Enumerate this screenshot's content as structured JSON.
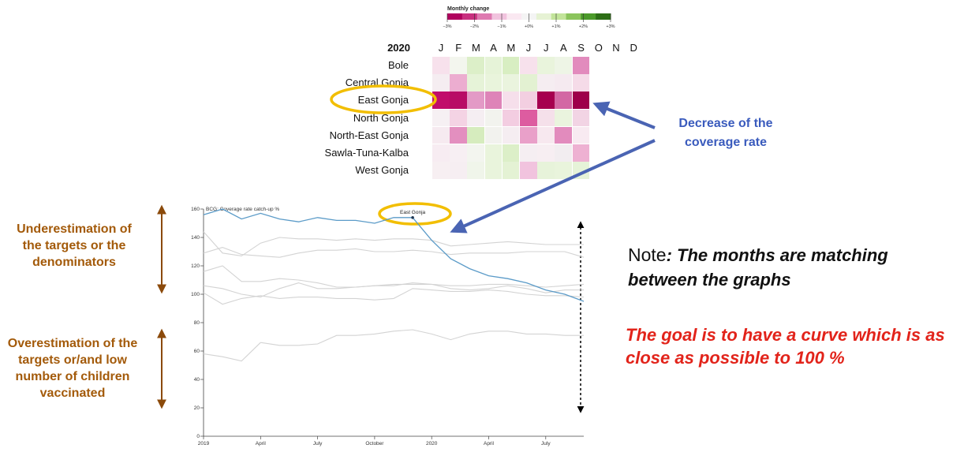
{
  "heatmap": {
    "legend_title": "Monthly change",
    "legend_ticks": [
      "−3%",
      "−2%",
      "−1%",
      "+0%",
      "+1%",
      "+2%",
      "+3%"
    ],
    "legend_colors": [
      "#b0025e",
      "#c8307f",
      "#de79b0",
      "#f1c3de",
      "#fae8f1",
      "#f4f4f4",
      "#e6f2d4",
      "#c2e49a",
      "#8bc45c",
      "#4b9a2a",
      "#2d6e16"
    ],
    "year": "2020",
    "months": [
      "J",
      "F",
      "M",
      "A",
      "M",
      "J",
      "J",
      "A",
      "S",
      "O",
      "N",
      "D"
    ],
    "rows": [
      {
        "label": "Bole",
        "colors": [
          "#f7e1ec",
          "#f3f6ee",
          "#dcefc8",
          "#e6f3d8",
          "#d8eec2",
          "#f7e1ec",
          "#e9f4dc",
          "#eef5e6",
          "#e28bbd"
        ]
      },
      {
        "label": "Central Gonja",
        "colors": [
          "#f5edf1",
          "#ecadd0",
          "#e6f3d8",
          "#e9f4dc",
          "#eaf4de",
          "#e3f1d2",
          "#f5edf1",
          "#f5eaf0",
          "#f5dbe8"
        ]
      },
      {
        "label": "East Gonja",
        "colors": [
          "#c10d6b",
          "#b80b66",
          "#e39ac6",
          "#de84b8",
          "#f6dfeb",
          "#f3cfe1",
          "#a6004f",
          "#d368a4",
          "#9e004a"
        ]
      },
      {
        "label": "North Gonja",
        "colors": [
          "#f6f0f3",
          "#f4d3e4",
          "#f5eef2",
          "#f2f3ee",
          "#f3cde1",
          "#dd5ca0",
          "#f5e0ea",
          "#eaf4de",
          "#f2d4e4"
        ]
      },
      {
        "label": "North-East Gonja",
        "colors": [
          "#f6eaf0",
          "#e38fbf",
          "#d6ecbe",
          "#f2f2ee",
          "#f5edf1",
          "#e9a0c9",
          "#f7e8ef",
          "#e28bbd",
          "#f8eaf1"
        ]
      },
      {
        "label": "Sawla-Tuna-Kalba",
        "colors": [
          "#f7ecf2",
          "#f7eff3",
          "#f3f5ef",
          "#e9f4dc",
          "#dcefc8",
          "#f5eef2",
          "#f7eef2",
          "#f2edf0",
          "#eeb1d2"
        ]
      },
      {
        "label": "West Gonja",
        "colors": [
          "#f7eff2",
          "#f6eef2",
          "#f0f5ea",
          "#e9f4dc",
          "#e4f2d4",
          "#f1c3de",
          "#e7f3da",
          "#e9f4dc",
          "#e6f3d8"
        ]
      }
    ]
  },
  "annotations": {
    "blue_label": [
      "Decrease of the",
      "coverage rate"
    ],
    "under_label": [
      "Underestimation of",
      "the targets or the",
      "denominators"
    ],
    "over_label": [
      "Overestimation of the",
      "targets or/and low",
      "number of children",
      "vaccinated"
    ],
    "note_prefix": "Note",
    "note_text": ": The months are matching between the graphs",
    "goal_text": "The goal is to have a curve which is as close as possible to 100 %"
  },
  "chart_data": {
    "type": "line",
    "title": "BCG: Coverage rate catch-up %",
    "x_tick_labels": [
      "2019",
      "April",
      "July",
      "October",
      "2020",
      "April",
      "July"
    ],
    "x_tick_months": [
      0,
      3,
      6,
      9,
      12,
      15,
      18
    ],
    "ylim": [
      0,
      160
    ],
    "y_ticks": [
      0,
      20,
      40,
      60,
      80,
      100,
      120,
      140,
      160
    ],
    "highlight_label": "East Gonja",
    "highlight_month": 11,
    "grid": false,
    "series": [
      {
        "highlight": true,
        "color": "#5b9bc8",
        "x": [
          0,
          1,
          2,
          3,
          4,
          5,
          6,
          7,
          8,
          9,
          10,
          11,
          12,
          13,
          14,
          15,
          16,
          17,
          18,
          19,
          20
        ],
        "y": [
          156,
          160,
          153,
          157,
          153,
          151,
          154,
          152,
          152,
          150,
          154,
          154,
          138,
          125,
          118,
          113,
          111,
          108,
          103,
          100,
          95
        ]
      },
      {
        "color": "#d3d3d3",
        "x": [
          0,
          1,
          2,
          3,
          4,
          5,
          6,
          7,
          8,
          9,
          10,
          11,
          12,
          13,
          14,
          15,
          16,
          17,
          18,
          19,
          20
        ],
        "y": [
          144,
          129,
          127,
          136,
          140,
          139,
          139,
          138,
          139,
          138,
          139,
          139,
          138,
          134,
          135,
          136,
          137,
          136,
          135,
          135,
          135
        ]
      },
      {
        "color": "#d3d3d3",
        "x": [
          0,
          1,
          2,
          3,
          4,
          5,
          6,
          7,
          8,
          9,
          10,
          11,
          12,
          13,
          14,
          15,
          16,
          17,
          18,
          19,
          20
        ],
        "y": [
          129,
          133,
          128,
          127,
          126,
          129,
          131,
          131,
          132,
          130,
          130,
          131,
          130,
          128,
          129,
          129,
          129,
          130,
          130,
          130,
          126
        ]
      },
      {
        "color": "#d3d3d3",
        "x": [
          0,
          1,
          2,
          3,
          4,
          5,
          6,
          7,
          8,
          9,
          10,
          11,
          12,
          13,
          14,
          15,
          16,
          17,
          18,
          19,
          20
        ],
        "y": [
          116,
          120,
          109,
          109,
          111,
          110,
          108,
          105,
          105,
          106,
          106,
          108,
          107,
          106,
          106,
          107,
          107,
          106,
          105,
          106,
          107
        ]
      },
      {
        "color": "#d3d3d3",
        "x": [
          0,
          1,
          2,
          3,
          4,
          5,
          6,
          7,
          8,
          9,
          10,
          11,
          12,
          13,
          14,
          15,
          16,
          17,
          18,
          19,
          20
        ],
        "y": [
          106,
          104,
          100,
          98,
          104,
          108,
          104,
          104,
          105,
          106,
          107,
          107,
          107,
          104,
          103,
          104,
          106,
          104,
          101,
          103,
          103
        ]
      },
      {
        "color": "#d3d3d3",
        "x": [
          0,
          1,
          2,
          3,
          4,
          5,
          6,
          7,
          8,
          9,
          10,
          11,
          12,
          13,
          14,
          15,
          16,
          17,
          18,
          19,
          20
        ],
        "y": [
          101,
          93,
          97,
          99,
          97,
          98,
          98,
          97,
          97,
          96,
          97,
          104,
          103,
          102,
          102,
          103,
          102,
          100,
          99,
          99,
          98
        ]
      },
      {
        "color": "#d3d3d3",
        "x": [
          3,
          4,
          5,
          6,
          7,
          8,
          9,
          10,
          11,
          12,
          13,
          14,
          15,
          16,
          17,
          18,
          19,
          20
        ],
        "y": [
          66,
          64,
          64,
          65,
          71,
          71,
          72,
          74,
          75,
          72,
          68,
          72,
          74,
          74,
          72,
          72,
          71,
          71
        ]
      },
      {
        "color": "#d3d3d3",
        "x": [
          0,
          1,
          2,
          3
        ],
        "y": [
          58,
          56,
          53,
          66
        ]
      }
    ]
  }
}
